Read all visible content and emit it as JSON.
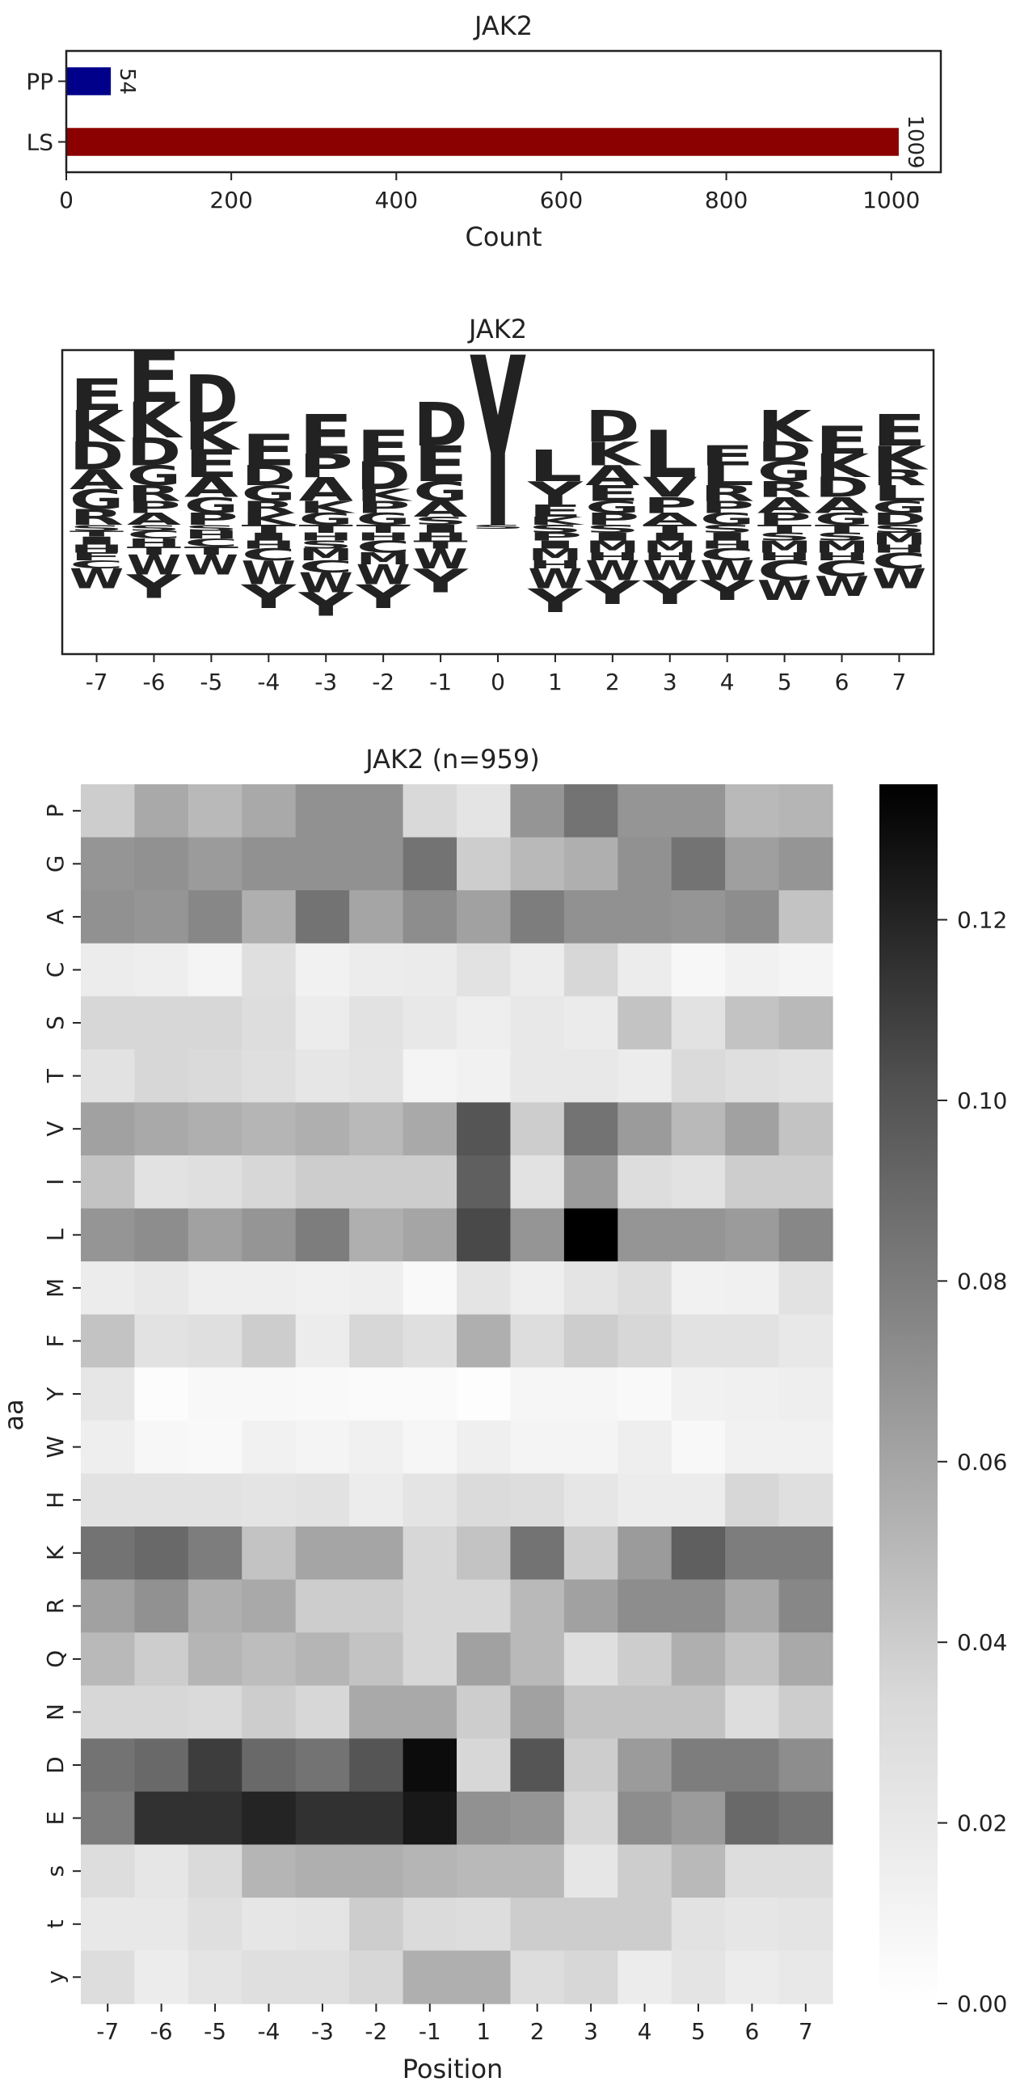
{
  "chart_data": [
    {
      "type": "bar",
      "orientation": "horizontal",
      "title": "JAK2",
      "xlabel": "Count",
      "ylabel": "",
      "categories": [
        "PP",
        "LS"
      ],
      "values": [
        54,
        1009
      ],
      "value_labels": [
        "54",
        "1009"
      ],
      "colors": [
        "#00008b",
        "#8b0000"
      ],
      "xlim": [
        0,
        1060
      ],
      "xticks": [
        0,
        200,
        400,
        600,
        800,
        1000
      ]
    },
    {
      "type": "sequence_logo",
      "title": "JAK2",
      "positions": [
        "-7",
        "-6",
        "-5",
        "-4",
        "-3",
        "-2",
        "-1",
        "0",
        "1",
        "2",
        "3",
        "4",
        "5",
        "6",
        "7"
      ],
      "letter_colors": {
        "acidic": "#dc143c",
        "basic": "#0000ff",
        "polar": "#008000",
        "proline": "#000000",
        "hydrophobic": "#daa520",
        "aromatic": "#8b3a0f",
        "other": "#800080",
        "modified": "#9932cc"
      },
      "enriched": [
        [
          [
            "K",
            0.8
          ],
          [
            "E",
            0.8
          ],
          [
            "D",
            0.7
          ],
          [
            "G",
            0.5
          ],
          [
            "A",
            0.5
          ],
          [
            "R",
            0.4
          ]
        ],
        [
          [
            "E",
            1.3
          ],
          [
            "K",
            0.9
          ],
          [
            "D",
            0.7
          ],
          [
            "G",
            0.5
          ],
          [
            "R",
            0.4
          ],
          [
            "A",
            0.3
          ],
          [
            "P",
            0.3
          ]
        ],
        [
          [
            "D",
            1.2
          ],
          [
            "E",
            0.7
          ],
          [
            "K",
            0.7
          ],
          [
            "A",
            0.5
          ],
          [
            "G",
            0.4
          ],
          [
            "P",
            0.3
          ]
        ],
        [
          [
            "E",
            0.8
          ],
          [
            "D",
            0.5
          ],
          [
            "G",
            0.4
          ],
          [
            "K",
            0.3
          ],
          [
            "R",
            0.3
          ]
        ],
        [
          [
            "E",
            1.0
          ],
          [
            "A",
            0.6
          ],
          [
            "P",
            0.6
          ],
          [
            "G",
            0.3
          ],
          [
            "K",
            0.3
          ]
        ],
        [
          [
            "E",
            0.8
          ],
          [
            "D",
            0.7
          ],
          [
            "G",
            0.3
          ],
          [
            "P",
            0.3
          ],
          [
            "K",
            0.3
          ]
        ],
        [
          [
            "D",
            1.1
          ],
          [
            "E",
            0.9
          ],
          [
            "G",
            0.5
          ],
          [
            "A",
            0.4
          ],
          [
            "S",
            0.2
          ]
        ],
        [
          [
            "Y",
            4.3
          ]
        ],
        [
          [
            "L",
            0.8
          ],
          [
            "Y",
            0.6
          ],
          [
            "E",
            0.3
          ],
          [
            "K",
            0.2
          ]
        ],
        [
          [
            "D",
            0.8
          ],
          [
            "K",
            0.6
          ],
          [
            "A",
            0.5
          ],
          [
            "E",
            0.4
          ],
          [
            "P",
            0.3
          ],
          [
            "G",
            0.3
          ]
        ],
        [
          [
            "L",
            1.2
          ],
          [
            "P",
            0.4
          ],
          [
            "V",
            0.5
          ],
          [
            "A",
            0.3
          ]
        ],
        [
          [
            "L",
            0.5
          ],
          [
            "E",
            0.5
          ],
          [
            "R",
            0.4
          ],
          [
            "G",
            0.3
          ],
          [
            "P",
            0.3
          ]
        ],
        [
          [
            "K",
            0.8
          ],
          [
            "G",
            0.5
          ],
          [
            "D",
            0.5
          ],
          [
            "A",
            0.4
          ],
          [
            "R",
            0.4
          ],
          [
            "P",
            0.3
          ]
        ],
        [
          [
            "E",
            0.7
          ],
          [
            "K",
            0.6
          ],
          [
            "D",
            0.5
          ],
          [
            "A",
            0.4
          ],
          [
            "G",
            0.3
          ]
        ],
        [
          [
            "E",
            0.8
          ],
          [
            "K",
            0.6
          ],
          [
            "L",
            0.4
          ],
          [
            "R",
            0.4
          ],
          [
            "D",
            0.3
          ],
          [
            "G",
            0.3
          ]
        ]
      ],
      "depleted": [
        [
          [
            "S",
            0.15
          ],
          [
            "T",
            0.15
          ],
          [
            "I",
            0.2
          ],
          [
            "H",
            0.2
          ],
          [
            "F",
            0.2
          ],
          [
            "C",
            0.2
          ],
          [
            "W",
            0.5
          ]
        ],
        [
          [
            "S",
            0.15
          ],
          [
            "C",
            0.2
          ],
          [
            "H",
            0.2
          ],
          [
            "T",
            0.2
          ],
          [
            "W",
            0.5
          ],
          [
            "Y",
            0.6
          ]
        ],
        [
          [
            "S",
            0.15
          ],
          [
            "H",
            0.2
          ],
          [
            "C",
            0.2
          ],
          [
            "T",
            0.2
          ],
          [
            "W",
            0.5
          ]
        ],
        [
          [
            "T",
            0.2
          ],
          [
            "I",
            0.2
          ],
          [
            "H",
            0.2
          ],
          [
            "C",
            0.3
          ],
          [
            "W",
            0.6
          ],
          [
            "Y",
            0.6
          ]
        ],
        [
          [
            "T",
            0.2
          ],
          [
            "H",
            0.2
          ],
          [
            "S",
            0.2
          ],
          [
            "M",
            0.3
          ],
          [
            "C",
            0.3
          ],
          [
            "W",
            0.5
          ],
          [
            "Y",
            0.6
          ]
        ],
        [
          [
            "T",
            0.2
          ],
          [
            "H",
            0.2
          ],
          [
            "C",
            0.3
          ],
          [
            "M",
            0.3
          ],
          [
            "W",
            0.5
          ],
          [
            "Y",
            0.6
          ]
        ],
        [
          [
            "I",
            0.2
          ],
          [
            "H",
            0.2
          ],
          [
            "T",
            0.2
          ],
          [
            "W",
            0.5
          ],
          [
            "Y",
            0.6
          ]
        ],
        [
          [
            "S",
            0.1
          ]
        ],
        [
          [
            "S",
            0.2
          ],
          [
            "P",
            0.2
          ],
          [
            "I",
            0.2
          ],
          [
            "M",
            0.3
          ],
          [
            "H",
            0.2
          ],
          [
            "W",
            0.5
          ],
          [
            "Y",
            0.6
          ]
        ],
        [
          [
            "S",
            0.2
          ],
          [
            "I",
            0.2
          ],
          [
            "M",
            0.3
          ],
          [
            "H",
            0.2
          ],
          [
            "W",
            0.5
          ],
          [
            "Y",
            0.6
          ]
        ],
        [
          [
            "T",
            0.2
          ],
          [
            "I",
            0.2
          ],
          [
            "M",
            0.3
          ],
          [
            "H",
            0.2
          ],
          [
            "W",
            0.5
          ],
          [
            "Y",
            0.6
          ]
        ],
        [
          [
            "S",
            0.2
          ],
          [
            "I",
            0.2
          ],
          [
            "H",
            0.2
          ],
          [
            "C",
            0.3
          ],
          [
            "W",
            0.5
          ],
          [
            "Y",
            0.5
          ]
        ],
        [
          [
            "T",
            0.2
          ],
          [
            "S",
            0.2
          ],
          [
            "M",
            0.3
          ],
          [
            "H",
            0.2
          ],
          [
            "C",
            0.5
          ],
          [
            "W",
            0.5
          ]
        ],
        [
          [
            "T",
            0.2
          ],
          [
            "S",
            0.2
          ],
          [
            "M",
            0.3
          ],
          [
            "H",
            0.2
          ],
          [
            "C",
            0.4
          ],
          [
            "W",
            0.5
          ]
        ],
        [
          [
            "S",
            0.2
          ],
          [
            "M",
            0.3
          ],
          [
            "H",
            0.2
          ],
          [
            "C",
            0.4
          ],
          [
            "W",
            0.5
          ]
        ]
      ]
    },
    {
      "type": "heatmap",
      "title": "JAK2 (n=959)",
      "xlabel": "Position",
      "ylabel": "aa",
      "x": [
        "-7",
        "-6",
        "-5",
        "-4",
        "-3",
        "-2",
        "-1",
        "1",
        "2",
        "3",
        "4",
        "5",
        "6",
        "7"
      ],
      "y": [
        "P",
        "G",
        "A",
        "C",
        "S",
        "T",
        "V",
        "I",
        "L",
        "M",
        "F",
        "Y",
        "W",
        "H",
        "K",
        "R",
        "Q",
        "N",
        "D",
        "E",
        "s",
        "t",
        "y"
      ],
      "colorbar_range": [
        0,
        0.135
      ],
      "colorbar_ticks": [
        0,
        0.02,
        0.04,
        0.06,
        0.08,
        0.1,
        0.12
      ],
      "colorbar_tick_labels": [
        "0.00",
        "0.02",
        "0.04",
        "0.06",
        "0.08",
        "0.10",
        "0.12"
      ],
      "cmap": "Greys",
      "values": [
        [
          0.04,
          0.058,
          0.05,
          0.058,
          0.07,
          0.07,
          0.034,
          0.024,
          0.068,
          0.085,
          0.068,
          0.068,
          0.05,
          0.052
        ],
        [
          0.068,
          0.07,
          0.065,
          0.07,
          0.07,
          0.07,
          0.085,
          0.04,
          0.05,
          0.055,
          0.07,
          0.085,
          0.063,
          0.068
        ],
        [
          0.07,
          0.068,
          0.075,
          0.055,
          0.085,
          0.06,
          0.072,
          0.062,
          0.08,
          0.07,
          0.07,
          0.068,
          0.072,
          0.045
        ],
        [
          0.017,
          0.015,
          0.01,
          0.028,
          0.012,
          0.017,
          0.018,
          0.026,
          0.017,
          0.035,
          0.017,
          0.007,
          0.012,
          0.01
        ],
        [
          0.035,
          0.035,
          0.035,
          0.03,
          0.017,
          0.026,
          0.02,
          0.015,
          0.02,
          0.018,
          0.045,
          0.026,
          0.045,
          0.05
        ],
        [
          0.026,
          0.035,
          0.033,
          0.028,
          0.022,
          0.025,
          0.01,
          0.012,
          0.02,
          0.02,
          0.017,
          0.033,
          0.028,
          0.026
        ],
        [
          0.062,
          0.058,
          0.055,
          0.052,
          0.055,
          0.05,
          0.058,
          0.1,
          0.04,
          0.085,
          0.065,
          0.05,
          0.062,
          0.045
        ],
        [
          0.045,
          0.026,
          0.028,
          0.035,
          0.04,
          0.04,
          0.04,
          0.095,
          0.026,
          0.065,
          0.03,
          0.026,
          0.04,
          0.04
        ],
        [
          0.068,
          0.072,
          0.062,
          0.068,
          0.08,
          0.055,
          0.06,
          0.105,
          0.068,
          0.135,
          0.068,
          0.068,
          0.065,
          0.075
        ],
        [
          0.017,
          0.02,
          0.015,
          0.015,
          0.013,
          0.015,
          0.005,
          0.024,
          0.015,
          0.024,
          0.03,
          0.012,
          0.013,
          0.026
        ],
        [
          0.045,
          0.026,
          0.028,
          0.04,
          0.017,
          0.035,
          0.028,
          0.055,
          0.03,
          0.04,
          0.035,
          0.026,
          0.026,
          0.02
        ],
        [
          0.022,
          0.003,
          0.006,
          0.006,
          0.005,
          0.004,
          0.004,
          0.002,
          0.008,
          0.008,
          0.005,
          0.012,
          0.013,
          0.015
        ],
        [
          0.015,
          0.007,
          0.005,
          0.012,
          0.01,
          0.013,
          0.008,
          0.014,
          0.01,
          0.01,
          0.015,
          0.006,
          0.012,
          0.012
        ],
        [
          0.026,
          0.026,
          0.026,
          0.024,
          0.026,
          0.017,
          0.024,
          0.032,
          0.03,
          0.022,
          0.017,
          0.017,
          0.035,
          0.028
        ],
        [
          0.085,
          0.09,
          0.08,
          0.045,
          0.06,
          0.06,
          0.035,
          0.045,
          0.085,
          0.04,
          0.065,
          0.095,
          0.08,
          0.08
        ],
        [
          0.062,
          0.07,
          0.055,
          0.058,
          0.04,
          0.04,
          0.035,
          0.035,
          0.05,
          0.062,
          0.072,
          0.072,
          0.058,
          0.075
        ],
        [
          0.05,
          0.04,
          0.052,
          0.048,
          0.052,
          0.045,
          0.035,
          0.062,
          0.05,
          0.028,
          0.04,
          0.055,
          0.045,
          0.058
        ],
        [
          0.035,
          0.035,
          0.033,
          0.04,
          0.035,
          0.058,
          0.058,
          0.04,
          0.062,
          0.045,
          0.045,
          0.045,
          0.03,
          0.04
        ],
        [
          0.085,
          0.09,
          0.11,
          0.09,
          0.085,
          0.1,
          0.13,
          0.035,
          0.1,
          0.04,
          0.065,
          0.08,
          0.08,
          0.072
        ],
        [
          0.08,
          0.115,
          0.115,
          0.12,
          0.115,
          0.115,
          0.125,
          0.07,
          0.068,
          0.035,
          0.072,
          0.065,
          0.09,
          0.085
        ],
        [
          0.03,
          0.022,
          0.033,
          0.052,
          0.055,
          0.055,
          0.052,
          0.05,
          0.05,
          0.022,
          0.04,
          0.05,
          0.03,
          0.03
        ],
        [
          0.02,
          0.02,
          0.028,
          0.022,
          0.024,
          0.04,
          0.032,
          0.03,
          0.04,
          0.04,
          0.04,
          0.026,
          0.022,
          0.024
        ],
        [
          0.03,
          0.017,
          0.024,
          0.028,
          0.028,
          0.035,
          0.055,
          0.055,
          0.03,
          0.035,
          0.017,
          0.024,
          0.017,
          0.02
        ]
      ]
    }
  ]
}
